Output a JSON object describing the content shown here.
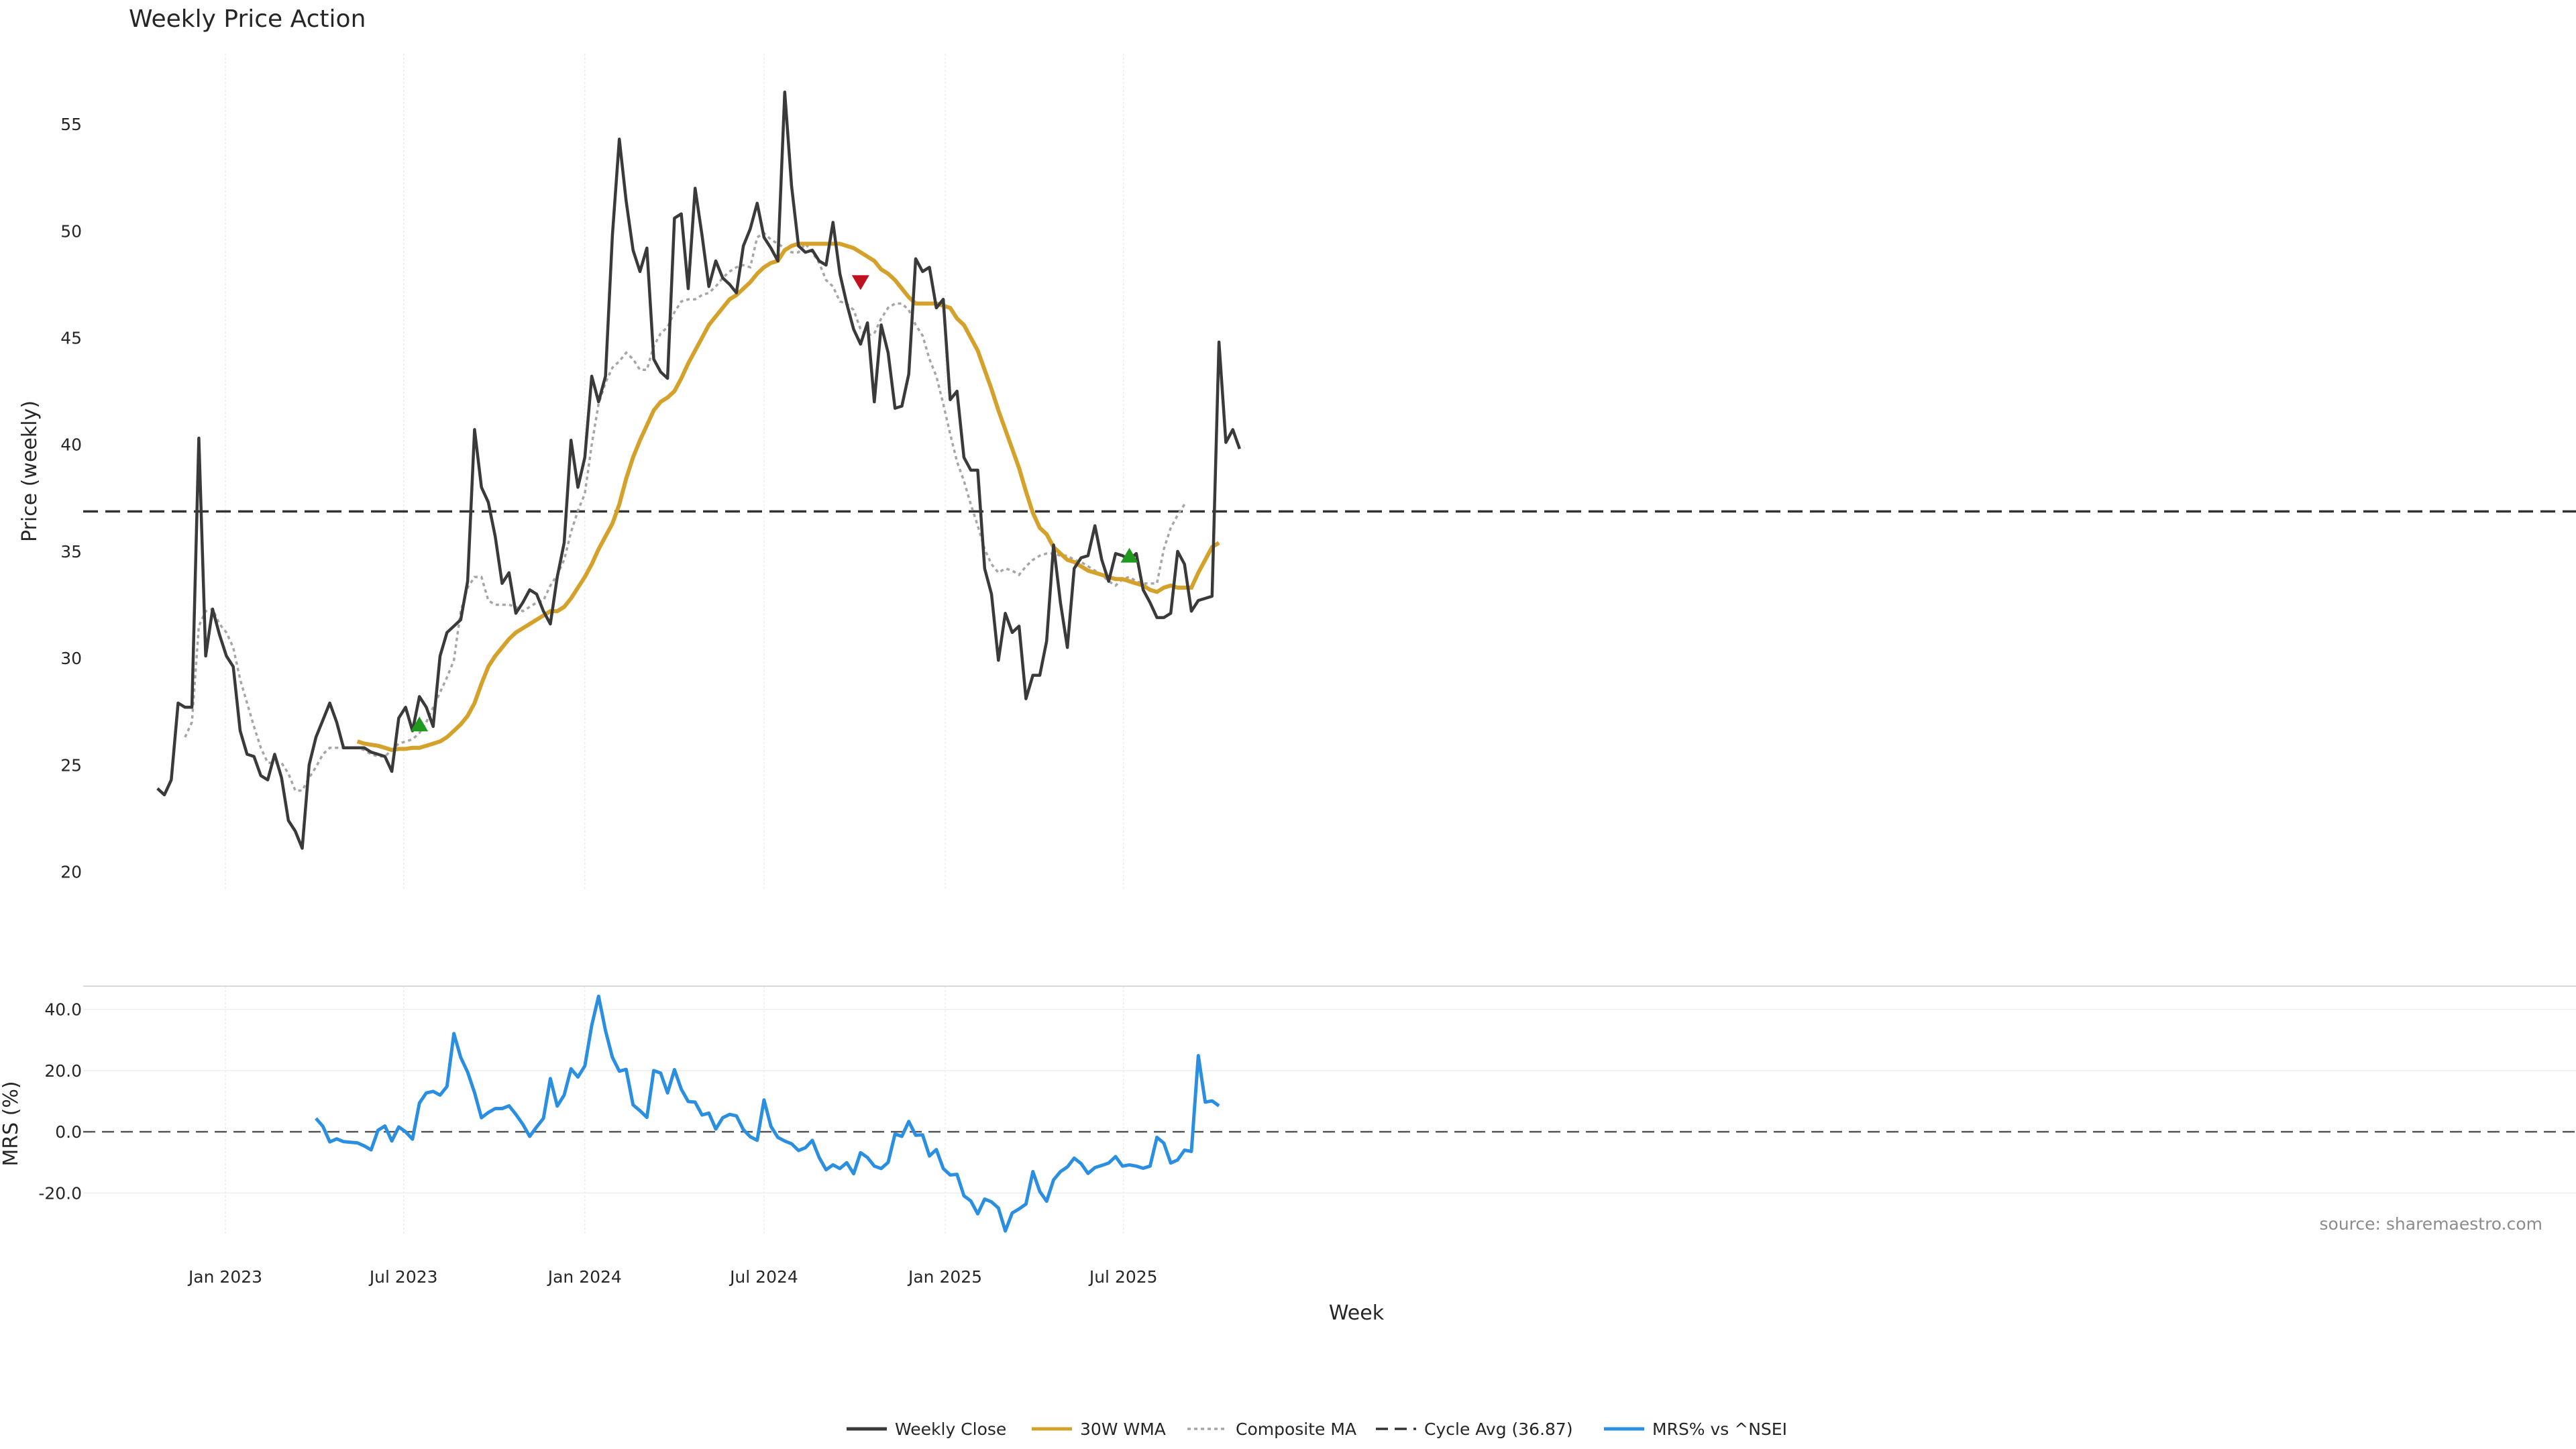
{
  "chart_data": [
    {
      "type": "line",
      "title": "Weekly Price Action",
      "ylabel": "Price (weekly)",
      "ylim": [
        19.2,
        58.3
      ],
      "yticks": [
        20,
        25,
        30,
        35,
        40,
        45,
        50,
        55
      ],
      "grid": true,
      "x_start": "2022-10-24",
      "x_step_days": 7,
      "reference_line": {
        "name": "Cycle Avg (36.87)",
        "value": 36.87
      },
      "series": [
        {
          "name": "Weekly Close",
          "color": "#3a3a3a",
          "values": [
            23.9,
            23.6,
            24.3,
            27.9,
            27.7,
            27.7,
            40.3,
            30.1,
            32.3,
            31.1,
            30.1,
            29.6,
            26.6,
            25.5,
            25.4,
            24.5,
            24.3,
            25.5,
            24.4,
            22.4,
            21.9,
            21.1,
            25.0,
            26.3,
            27.1,
            27.9,
            27.0,
            25.8,
            25.8,
            25.8,
            25.8,
            25.6,
            25.5,
            25.4,
            24.7,
            27.2,
            27.7,
            26.6,
            28.2,
            27.7,
            26.8,
            30.1,
            31.2,
            31.5,
            31.8,
            33.6,
            40.7,
            38.0,
            37.3,
            35.7,
            33.5,
            34.0,
            32.1,
            32.6,
            33.2,
            33.0,
            32.2,
            31.6,
            33.8,
            35.4,
            40.2,
            38.0,
            39.4,
            43.2,
            42.0,
            43.2,
            49.8,
            54.3,
            51.4,
            49.1,
            48.1,
            49.2,
            44.0,
            43.4,
            43.1,
            50.6,
            50.8,
            47.3,
            52.0,
            49.8,
            47.4,
            48.6,
            47.8,
            47.5,
            47.1,
            49.3,
            50.1,
            51.3,
            49.7,
            49.2,
            48.6,
            56.5,
            52.1,
            49.3,
            49.0,
            49.1,
            48.6,
            48.4,
            50.4,
            48.0,
            46.6,
            45.4,
            44.7,
            45.7,
            42.0,
            45.6,
            44.3,
            41.7,
            41.8,
            43.3,
            48.7,
            48.1,
            48.3,
            46.4,
            46.8,
            42.1,
            42.5,
            39.4,
            38.8,
            38.8,
            34.2,
            33.0,
            29.9,
            32.1,
            31.2,
            31.5,
            28.1,
            29.2,
            29.2,
            30.8,
            35.3,
            32.6,
            30.5,
            34.2,
            34.7,
            34.8,
            36.2,
            34.6,
            33.6,
            34.9,
            34.8,
            34.6,
            34.9,
            33.2,
            32.6,
            31.9,
            31.9,
            32.1,
            35.0,
            34.4,
            32.2,
            32.7,
            32.8,
            32.9,
            44.8,
            40.1,
            40.7,
            39.8
          ]
        },
        {
          "name": "30W WMA",
          "color": "#d4a12a",
          "start_index": 29,
          "values": [
            26.1,
            26.0,
            25.95,
            25.9,
            25.8,
            25.7,
            25.75,
            25.75,
            25.8,
            25.8,
            25.9,
            26.0,
            26.1,
            26.3,
            26.6,
            26.9,
            27.3,
            27.9,
            28.8,
            29.6,
            30.1,
            30.5,
            30.9,
            31.2,
            31.4,
            31.6,
            31.8,
            32.0,
            32.2,
            32.2,
            32.4,
            32.8,
            33.3,
            33.8,
            34.4,
            35.1,
            35.7,
            36.3,
            37.2,
            38.4,
            39.4,
            40.2,
            40.9,
            41.6,
            42.0,
            42.2,
            42.5,
            43.1,
            43.8,
            44.4,
            45.0,
            45.6,
            46.0,
            46.4,
            46.8,
            47.0,
            47.3,
            47.6,
            48.0,
            48.3,
            48.5,
            48.6,
            49.1,
            49.3,
            49.4,
            49.4,
            49.4,
            49.4,
            49.4,
            49.4,
            49.4,
            49.3,
            49.2,
            49.0,
            48.8,
            48.6,
            48.2,
            48.0,
            47.7,
            47.3,
            46.9,
            46.6,
            46.6,
            46.6,
            46.6,
            46.5,
            46.4,
            45.9,
            45.6,
            45.0,
            44.4,
            43.5,
            42.6,
            41.6,
            40.7,
            39.8,
            38.9,
            37.8,
            36.8,
            36.1,
            35.8,
            35.2,
            34.9,
            34.6,
            34.5,
            34.3,
            34.1,
            34.0,
            33.9,
            33.8,
            33.7,
            33.7,
            33.6,
            33.5,
            33.4,
            33.2,
            33.1,
            33.3,
            33.4,
            33.3,
            33.3,
            33.3,
            34.0,
            34.6,
            35.2,
            35.4
          ]
        },
        {
          "name": "Composite MA",
          "color": "#a6a6a6",
          "dash": "dotted",
          "start_index": 4,
          "values": [
            26.3,
            27.0,
            31.5,
            32.2,
            32.3,
            31.6,
            31.2,
            30.5,
            29.0,
            27.9,
            26.8,
            25.8,
            25.1,
            25.1,
            25.1,
            24.6,
            23.8,
            23.8,
            24.4,
            24.9,
            25.5,
            25.8,
            25.8,
            25.8,
            25.8,
            25.8,
            25.7,
            25.5,
            25.4,
            25.4,
            25.7,
            26.0,
            26.1,
            26.2,
            26.5,
            27.0,
            27.7,
            28.4,
            29.1,
            29.9,
            32.2,
            33.3,
            33.8,
            33.8,
            32.7,
            32.5,
            32.5,
            32.5,
            32.4,
            32.2,
            32.4,
            32.6,
            32.7,
            33.4,
            33.9,
            34.6,
            35.9,
            36.9,
            37.7,
            40.0,
            41.9,
            42.9,
            43.6,
            43.9,
            44.3,
            44.0,
            43.5,
            43.5,
            44.6,
            45.2,
            45.5,
            46.2,
            46.7,
            46.8,
            46.8,
            47.0,
            47.1,
            47.4,
            47.8,
            48.1,
            48.3,
            48.4,
            48.3,
            49.7,
            49.9,
            49.6,
            49.4,
            49.2,
            49.0,
            49.0,
            49.4,
            49.0,
            48.5,
            47.7,
            47.4,
            46.7,
            46.6,
            46.3,
            45.4,
            45.1,
            45.2,
            45.9,
            46.4,
            46.6,
            46.6,
            46.3,
            45.6,
            45.1,
            44.0,
            43.2,
            41.9,
            40.5,
            39.2,
            38.3,
            37.2,
            36.2,
            35.1,
            34.4,
            34.0,
            34.2,
            34.1,
            33.9,
            34.3,
            34.6,
            34.8,
            34.9,
            34.9,
            34.8,
            34.8,
            34.6,
            34.5,
            34.3,
            34.1,
            33.9,
            33.6,
            33.4,
            33.7,
            33.8,
            33.6,
            33.5,
            33.5,
            33.5,
            35.1,
            36.1,
            36.7,
            37.2
          ]
        }
      ],
      "markers": [
        {
          "type": "buy",
          "index": 38,
          "value": 26.9,
          "color": "#1f9a1f"
        },
        {
          "type": "sell",
          "index": 102,
          "value": 47.6,
          "color": "#c0111e"
        },
        {
          "type": "buy",
          "index": 141,
          "value": 34.8,
          "color": "#1f9a1f"
        }
      ]
    },
    {
      "type": "line",
      "xlabel": "Week",
      "ylabel": "MRS (%)",
      "ylim": [
        -33.5,
        47.6
      ],
      "yticks": [
        -20.0,
        0.0,
        20.0,
        40.0
      ],
      "ytick_labels": [
        "-20.0",
        "0.0",
        "20.0",
        "40.0"
      ],
      "grid": true,
      "zero_line": true,
      "x_start": "2022-10-24",
      "x_step_days": 7,
      "xticks": [
        "Jan 2023",
        "Jul 2023",
        "Jan 2024",
        "Jul 2024",
        "Jan 2025",
        "Jul 2025"
      ],
      "xtick_dates": [
        "2023-01-01",
        "2023-07-01",
        "2024-01-01",
        "2024-07-01",
        "2025-01-01",
        "2025-07-01"
      ],
      "series": [
        {
          "name": "MRS% vs ^NSEI",
          "color": "#2a8fe0",
          "start_index": 23,
          "values": [
            4.4,
            1.8,
            -3.3,
            -2.3,
            -3.2,
            -3.4,
            -3.6,
            -4.6,
            -5.9,
            0.5,
            1.9,
            -3.0,
            1.6,
            0.0,
            -2.4,
            9.4,
            12.7,
            13.2,
            12.0,
            14.8,
            32.1,
            24.3,
            19.5,
            12.8,
            4.6,
            6.3,
            7.6,
            7.6,
            8.5,
            5.7,
            2.5,
            -1.5,
            1.6,
            4.4,
            17.4,
            8.4,
            12.0,
            20.6,
            17.9,
            21.5,
            34.8,
            44.3,
            33.1,
            24.3,
            19.8,
            20.4,
            8.8,
            6.9,
            4.7,
            20.0,
            19.2,
            12.7,
            20.3,
            13.9,
            9.9,
            9.7,
            5.5,
            6.1,
            0.9,
            4.6,
            5.7,
            5.2,
            0.7,
            -1.6,
            -2.8,
            10.4,
            1.8,
            -1.8,
            -3.0,
            -3.9,
            -6.1,
            -5.2,
            -2.8,
            -8.4,
            -12.4,
            -10.8,
            -12.0,
            -10.1,
            -13.7,
            -6.8,
            -8.4,
            -11.2,
            -12.0,
            -10.0,
            -0.7,
            -1.5,
            3.4,
            -1.1,
            -1.0,
            -7.9,
            -5.8,
            -12.0,
            -14.1,
            -13.9,
            -20.9,
            -22.6,
            -26.8,
            -22.0,
            -22.9,
            -24.9,
            -32.4,
            -26.5,
            -25.2,
            -23.6,
            -13.0,
            -19.5,
            -22.7,
            -15.7,
            -13.0,
            -11.5,
            -8.6,
            -10.4,
            -13.6,
            -11.7,
            -11.0,
            -10.2,
            -8.1,
            -11.2,
            -10.8,
            -11.2,
            -11.9,
            -11.2,
            -1.8,
            -3.7,
            -10.2,
            -9.2,
            -6.0,
            -6.4,
            24.9,
            9.7,
            10.1,
            8.5
          ]
        }
      ]
    }
  ],
  "source_note": "source: sharemaestro.com",
  "legend": [
    {
      "label": "Weekly Close",
      "style": "solid",
      "color": "#3a3a3a"
    },
    {
      "label": "30W WMA",
      "style": "solid",
      "color": "#d4a12a"
    },
    {
      "label": "Composite MA",
      "style": "dotted",
      "color": "#a6a6a6"
    },
    {
      "label": "Cycle Avg (36.87)",
      "style": "dashed",
      "color": "#333333"
    },
    {
      "label": "MRS% vs ^NSEI",
      "style": "solid",
      "color": "#2a8fe0"
    }
  ]
}
